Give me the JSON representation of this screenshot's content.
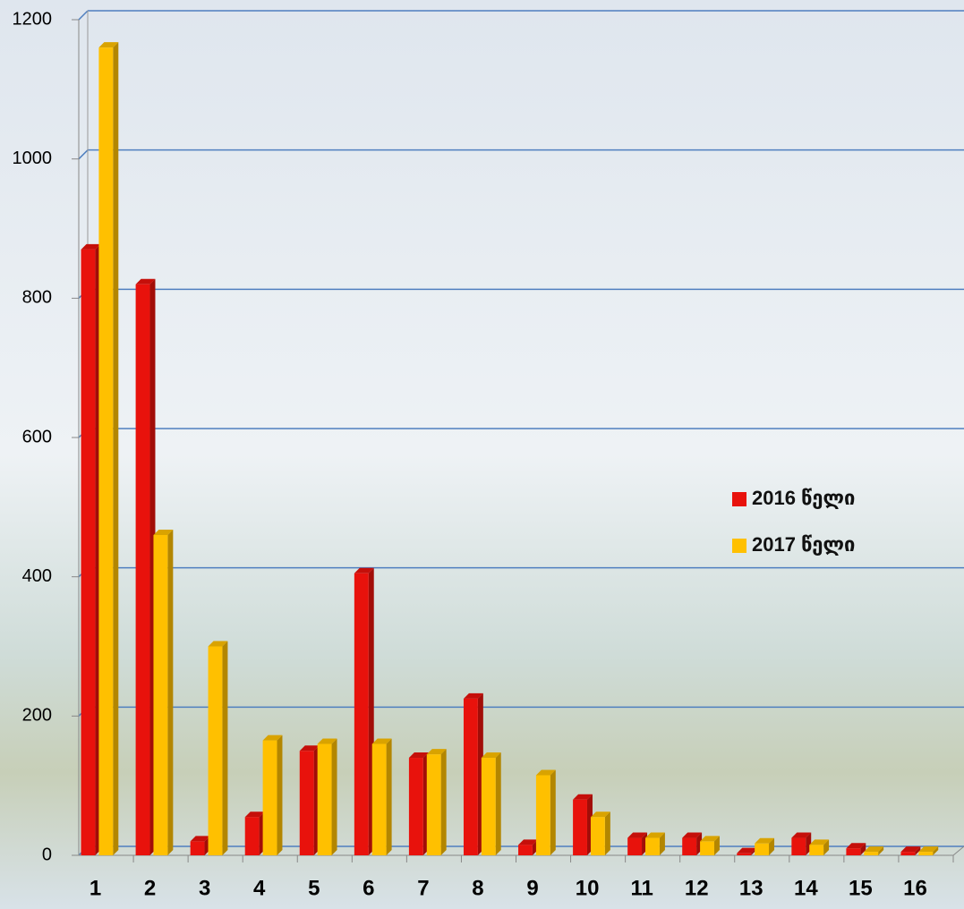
{
  "chart_data": {
    "type": "bar",
    "categories": [
      "1",
      "2",
      "3",
      "4",
      "5",
      "6",
      "7",
      "8",
      "9",
      "10",
      "11",
      "12",
      "13",
      "14",
      "15",
      "16"
    ],
    "series": [
      {
        "name": "2016 წელი",
        "color": "#e8120c",
        "values": [
          870,
          820,
          20,
          55,
          150,
          405,
          140,
          225,
          15,
          80,
          25,
          25,
          3,
          25,
          10,
          5
        ]
      },
      {
        "name": "2017 წელი",
        "color": "#ffc000",
        "values": [
          1160,
          460,
          300,
          165,
          160,
          160,
          145,
          140,
          115,
          55,
          25,
          20,
          17,
          15,
          5,
          5
        ]
      }
    ],
    "ylim": [
      0,
      1200
    ],
    "yticks": [
      0,
      200,
      400,
      600,
      800,
      1000,
      1200
    ],
    "grid": true,
    "legend": "right"
  }
}
